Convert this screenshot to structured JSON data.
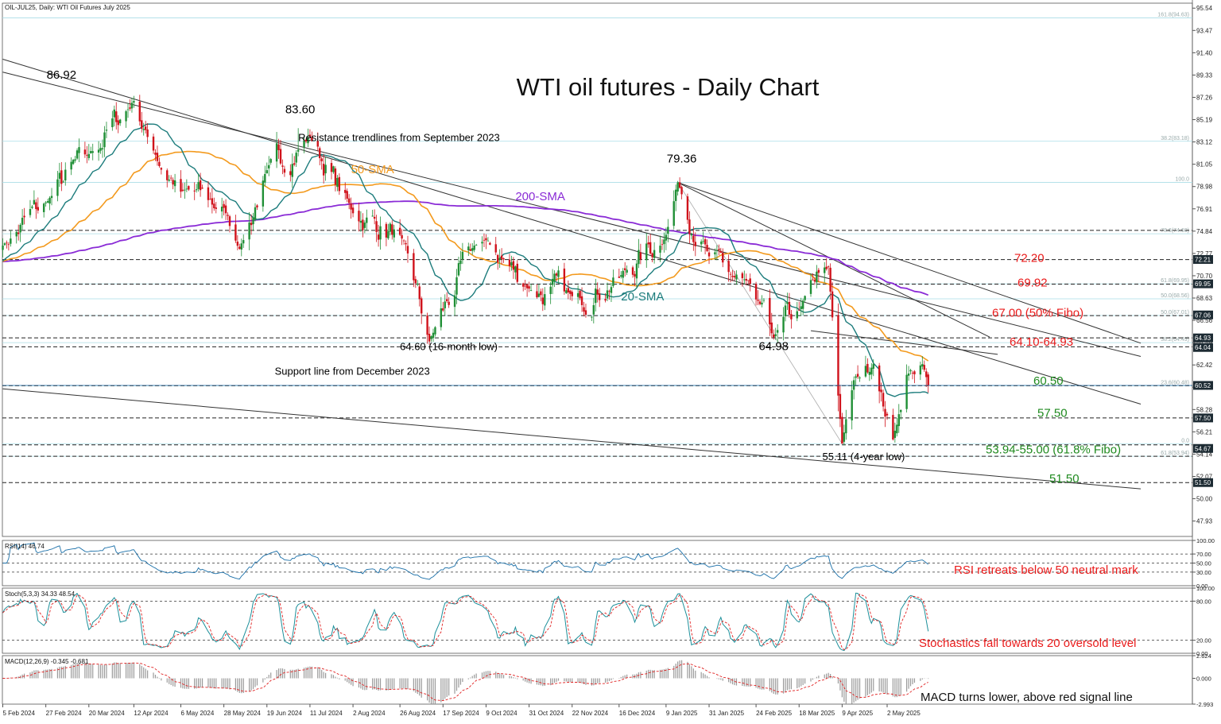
{
  "window": {
    "header": "OIL-JUL25, Daily:  WTI Oil Futures July 2025",
    "title": "WTI oil futures  - Daily Chart"
  },
  "colors": {
    "bull": "#1f8f35",
    "bear": "#d0121b",
    "sma20": "#1c7c7c",
    "sma50": "#f39a1e",
    "sma200": "#8a2bd6",
    "red_text": "#ea1b1b",
    "green_text": "#1f8a1f",
    "grid_light": "#a9dde6"
  },
  "chart_data": [
    {
      "type": "candlestick",
      "title": "WTI oil futures  - Daily Chart",
      "x_tick_labels": [
        "5 Feb 2024",
        "27 Feb 2024",
        "20 Mar 2024",
        "12 Apr 2024",
        "6 May 2024",
        "28 May 2024",
        "19 Jun 2024",
        "11 Jul 2024",
        "2 Aug 2024",
        "26 Aug 2024",
        "17 Sep 2024",
        "9 Oct 2024",
        "31 Oct 2024",
        "22 Nov 2024",
        "16 Dec 2024",
        "9 Jan 2025",
        "31 Jan 2025",
        "24 Feb 2025",
        "18 Mar 2025",
        "9 Apr 2025",
        "2 May 2025"
      ],
      "y_tick_labels": [
        "95.54",
        "93.47",
        "91.40",
        "89.33",
        "87.26",
        "85.19",
        "83.12",
        "81.05",
        "78.98",
        "76.91",
        "74.84",
        "72.77",
        "70.70",
        "68.63",
        "66.56",
        "64.49",
        "62.42",
        "60.35",
        "58.28",
        "56.21",
        "54.14",
        "52.07",
        "50.00",
        "47.93"
      ],
      "ylim": [
        46.5,
        96.0
      ],
      "price_anchors": [
        [
          "5 Feb 2024",
          73.5
        ],
        [
          "27 Feb 2024",
          77.5
        ],
        [
          "20 Mar 2024",
          82.0
        ],
        [
          "12 Apr 2024",
          86.92
        ],
        [
          "20 Apr 2024",
          83.0
        ],
        [
          "6 May 2024",
          78.5
        ],
        [
          "28 May 2024",
          77.0
        ],
        [
          "5 Jun 2024",
          73.2
        ],
        [
          "19 Jun 2024",
          80.5
        ],
        [
          "11 Jul 2024",
          83.6
        ],
        [
          "2 Aug 2024",
          76.5
        ],
        [
          "26 Aug 2024",
          74.5
        ],
        [
          "10 Sep 2024",
          64.6
        ],
        [
          "3 Oct 2024",
          73.5
        ],
        [
          "9 Oct 2024",
          74.0
        ],
        [
          "31 Oct 2024",
          69.5
        ],
        [
          "22 Nov 2024",
          68.8
        ],
        [
          "16 Dec 2024",
          70.5
        ],
        [
          "9 Jan 2025",
          74.5
        ],
        [
          "15 Jan 2025",
          79.36
        ],
        [
          "31 Jan 2025",
          72.5
        ],
        [
          "24 Feb 2025",
          68.5
        ],
        [
          "5 Mar 2025",
          64.98
        ],
        [
          "18 Mar 2025",
          67.5
        ],
        [
          "2 Apr 2025",
          71.5
        ],
        [
          "9 Apr 2025",
          55.11
        ],
        [
          "15 Apr 2025",
          61.0
        ],
        [
          "25 Apr 2025",
          62.5
        ],
        [
          "5 May 2025",
          55.5
        ],
        [
          "12 May 2025",
          61.5
        ],
        [
          "20 May 2025",
          62.5
        ],
        [
          "23 May 2025",
          60.5
        ]
      ],
      "current_price": 60.52,
      "highlighted_price_labels": [
        "72.21",
        "69.95",
        "67.06",
        "64.93",
        "64.04",
        "60.52",
        "57.50",
        "54.67",
        "51.50"
      ],
      "moving_averages": [
        {
          "name": "20-SMA",
          "period": 20
        },
        {
          "name": "50-SMA",
          "period": 50
        },
        {
          "name": "200-SMA",
          "period": 200
        }
      ],
      "horizontal_levels": [
        74.91,
        72.2,
        69.92,
        67.0,
        64.93,
        64.1,
        60.5,
        57.5,
        55.0,
        53.94,
        51.5
      ],
      "fibonacci_labels": [
        {
          "label": "161.8(94.63)",
          "price": 94.63
        },
        {
          "label": "38.2(83.18)",
          "price": 83.18
        },
        {
          "label": "100.0",
          "price": 79.36
        },
        {
          "label": "78.6(74.60)",
          "price": 74.6
        },
        {
          "label": "61.8(69.95)",
          "price": 69.95
        },
        {
          "label": "50.0(68.56)",
          "price": 68.56
        },
        {
          "label": "50.0(67.01)",
          "price": 67.01
        },
        {
          "label": "38.2(64.49)",
          "price": 64.49
        },
        {
          "label": "23.6(60.48)",
          "price": 60.48
        },
        {
          "label": "0.0",
          "price": 55.11
        },
        {
          "label": "61.8(53.94)",
          "price": 53.94
        }
      ],
      "trendlines": [
        {
          "name": "Resistance trendlines from September 2023",
          "from": [
            "5 Feb 2024",
            90.8
          ],
          "to": [
            "26 May 2025",
            64.6
          ]
        },
        {
          "name": "Resistance trendline 2",
          "from": [
            "5 Feb 2024",
            89.6
          ],
          "to": [
            "26 May 2025",
            68.0
          ]
        },
        {
          "name": "Upper trendline",
          "from": [
            "15 Jan 2025",
            79.36
          ],
          "to": [
            "26 May 2025",
            71.1
          ]
        },
        {
          "name": "Support line from December 2023",
          "from": [
            "5 Feb 2024",
            60.2
          ],
          "to": [
            "26 May 2025",
            52.6
          ]
        }
      ],
      "annotations": [
        {
          "text": "86.92",
          "color": "#000000"
        },
        {
          "text": "83.60",
          "color": "#000000"
        },
        {
          "text": "79.36",
          "color": "#000000"
        },
        {
          "text": "Resistance trendlines from September 2023",
          "color": "#000000"
        },
        {
          "text": "50-SMA",
          "color": "#f39a1e"
        },
        {
          "text": "200-SMA",
          "color": "#8a2bd6"
        },
        {
          "text": "20-SMA",
          "color": "#1c7c7c"
        },
        {
          "text": "64.60 (16-month low)",
          "color": "#000000"
        },
        {
          "text": "64.98",
          "color": "#000000"
        },
        {
          "text": "Support line from December 2023",
          "color": "#000000"
        },
        {
          "text": "55.11 (4-year low)",
          "color": "#000000"
        },
        {
          "text": "72.20",
          "color": "#ea1b1b"
        },
        {
          "text": "69.92",
          "color": "#ea1b1b"
        },
        {
          "text": "67.00 (50% Fibo)",
          "color": "#ea1b1b"
        },
        {
          "text": "64.10-64.93",
          "color": "#ea1b1b"
        },
        {
          "text": "60.50",
          "color": "#1f8a1f"
        },
        {
          "text": "57.50",
          "color": "#1f8a1f"
        },
        {
          "text": "53.94-55.00 (61.8% Fibo)",
          "color": "#1f8a1f"
        },
        {
          "text": "51.50",
          "color": "#1f8a1f"
        }
      ]
    },
    {
      "type": "line",
      "title": "RSI(14) 46.74",
      "ylim": [
        0,
        100
      ],
      "y_tick_labels": [
        "100.00",
        "70.00",
        "50.00",
        "30.00",
        "0.00"
      ],
      "annotation": "RSI retreats below 50 neutral mark",
      "last_value": 46.74
    },
    {
      "type": "line",
      "title": "Stoch(5,3,3) 34.33 48.54",
      "ylim": [
        0,
        100
      ],
      "y_tick_labels": [
        "100.00",
        "80.00",
        "20.00",
        "0.00"
      ],
      "series": [
        {
          "name": "%K",
          "last": 34.33
        },
        {
          "name": "%D",
          "last": 48.54
        }
      ],
      "annotation": "Stochastics fall towards 20 oversold level"
    },
    {
      "type": "bar",
      "title": "MACD(12,26,9) -0.345 -0.681",
      "y_tick_labels": [
        "2.624",
        "0.000",
        "-2.993"
      ],
      "ylim": [
        -2.993,
        2.624
      ],
      "series": [
        {
          "name": "MACD",
          "last": -0.345
        },
        {
          "name": "Signal",
          "last": -0.681
        }
      ],
      "annotation": "MACD turns lower, above red signal line"
    }
  ]
}
